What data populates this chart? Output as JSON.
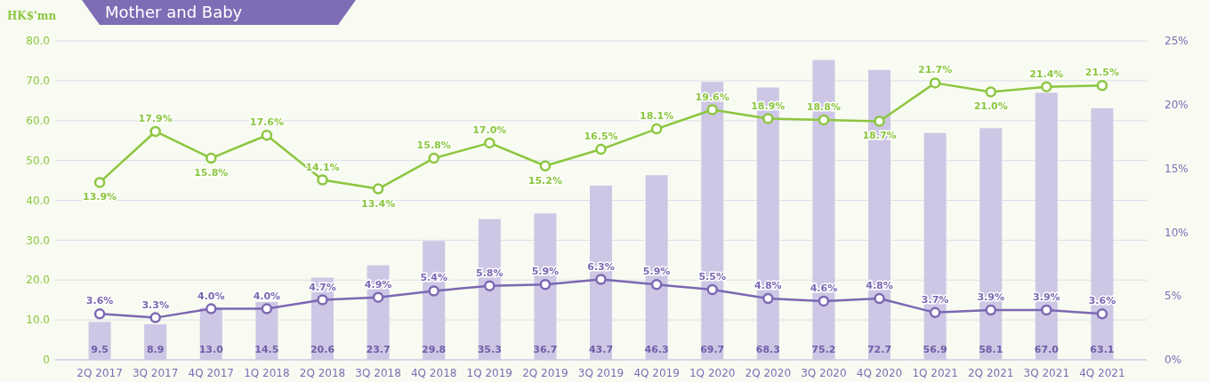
{
  "chart_data": {
    "type": "bar",
    "title": "Mother and Baby",
    "ylabel": "HK$'mn",
    "categories": [
      "2Q 2017",
      "3Q 2017",
      "4Q 2017",
      "1Q 2018",
      "2Q 2018",
      "3Q 2018",
      "4Q 2018",
      "1Q 2019",
      "2Q 2019",
      "3Q 2019",
      "4Q 2019",
      "1Q 2020",
      "2Q 2020",
      "3Q 2020",
      "4Q 2020",
      "1Q 2021",
      "2Q 2021",
      "3Q 2021",
      "4Q 2021"
    ],
    "series": [
      {
        "color": "#cdc7e5",
        "values": [
          9.5,
          8.9,
          13.0,
          14.5,
          20.6,
          23.7,
          29.8,
          35.3,
          36.7,
          43.7,
          46.3,
          69.7,
          68.3,
          75.2,
          72.7,
          56.9,
          58.1,
          67.0,
          63.1
        ],
        "value_labels": [
          "9.5",
          "8.9",
          "13.0",
          "14.5",
          "20.6",
          "23.7",
          "29.8",
          "35.3",
          "36.7",
          "43.7",
          "46.3",
          "69.7",
          "68.3",
          "75.2",
          "72.7",
          "56.9",
          "58.1",
          "67.0",
          "63.1"
        ]
      },
      {
        "type": "line",
        "axis": "y2",
        "color": "#8cc63f",
        "values": [
          13.9,
          17.9,
          15.8,
          17.6,
          14.1,
          13.4,
          15.8,
          17.0,
          15.2,
          16.5,
          18.1,
          19.6,
          18.9,
          18.8,
          18.7,
          21.7,
          21.0,
          21.4,
          21.5
        ],
        "value_labels": [
          "13.9%",
          "17.9%",
          "15.8%",
          "17.6%",
          "14.1%",
          "13.4%",
          "15.8%",
          "17.0%",
          "15.2%",
          "16.5%",
          "18.1%",
          "19.6%",
          "18.9%",
          "18.8%",
          "18.7%",
          "21.7%",
          "21.0%",
          "21.4%",
          "21.5%"
        ]
      },
      {
        "type": "line",
        "axis": "y2",
        "color": "#7b68b2",
        "values": [
          3.6,
          3.3,
          4.0,
          4.0,
          4.7,
          4.9,
          5.4,
          5.8,
          5.9,
          6.3,
          5.9,
          5.5,
          4.8,
          4.6,
          4.8,
          3.7,
          3.9,
          3.9,
          3.6
        ],
        "value_labels": [
          "3.6%",
          "3.3%",
          "4.0%",
          "4.0%",
          "4.7%",
          "4.9%",
          "5.4%",
          "5.8%",
          "5.9%",
          "6.3%",
          "5.9%",
          "5.5%",
          "4.8%",
          "4.6%",
          "4.8%",
          "3.7%",
          "3.9%",
          "3.9%",
          "3.6%"
        ]
      }
    ],
    "ylim": [
      0,
      80
    ],
    "yticks": [
      0,
      {
        "value": 10,
        "label": "10.0"
      },
      {
        "value": 20,
        "label": "20.0"
      },
      {
        "value": 30,
        "label": "30.0"
      },
      {
        "value": 40,
        "label": "40.0"
      },
      {
        "value": 50,
        "label": "50.0"
      },
      {
        "value": 60,
        "label": "60.0"
      },
      {
        "value": 70,
        "label": "70.0"
      },
      {
        "value": 80,
        "label": "80.0"
      }
    ],
    "y2lim": [
      0,
      25
    ],
    "y2ticks": [
      {
        "value": 0,
        "label": "0%"
      },
      {
        "value": 5,
        "label": "5%"
      },
      {
        "value": 10,
        "label": "10%"
      },
      {
        "value": 15,
        "label": "15%"
      },
      {
        "value": 20,
        "label": "20%"
      },
      {
        "value": 25,
        "label": "25%"
      }
    ],
    "grid": "y",
    "marker": "circle"
  }
}
